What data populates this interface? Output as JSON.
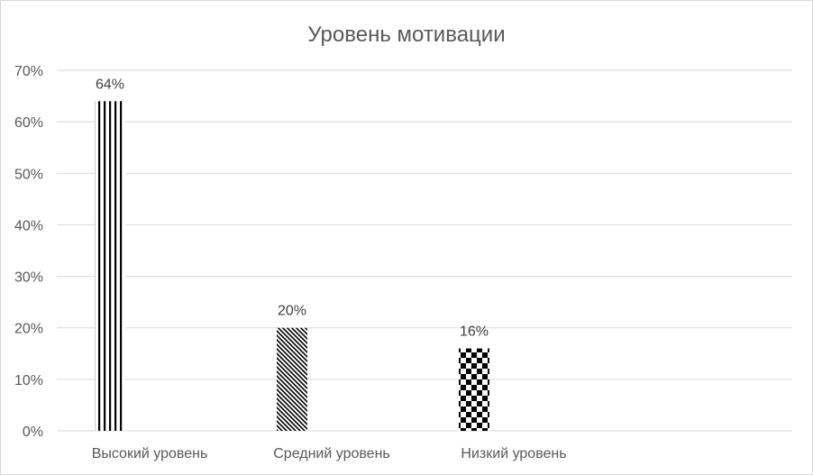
{
  "chart_data": {
    "type": "bar",
    "title": "Уровень мотивации",
    "categories": [
      "Высокий уровень",
      "Средний уровень",
      "Низкий уровень"
    ],
    "values": [
      64,
      20,
      16
    ],
    "data_labels": [
      "64%",
      "20%",
      "16%"
    ],
    "y_ticks": [
      "0%",
      "10%",
      "20%",
      "30%",
      "40%",
      "50%",
      "60%",
      "70%"
    ],
    "ylim": [
      0,
      70
    ],
    "grid": true,
    "legend": "none",
    "bar_patterns": [
      "vertical-stripes",
      "diagonal-hatch",
      "checkerboard"
    ],
    "colors": {
      "bar_ink": "#000000",
      "bar_bg": "#ffffff",
      "grid": "#d9d9d9",
      "text": "#595959"
    }
  }
}
